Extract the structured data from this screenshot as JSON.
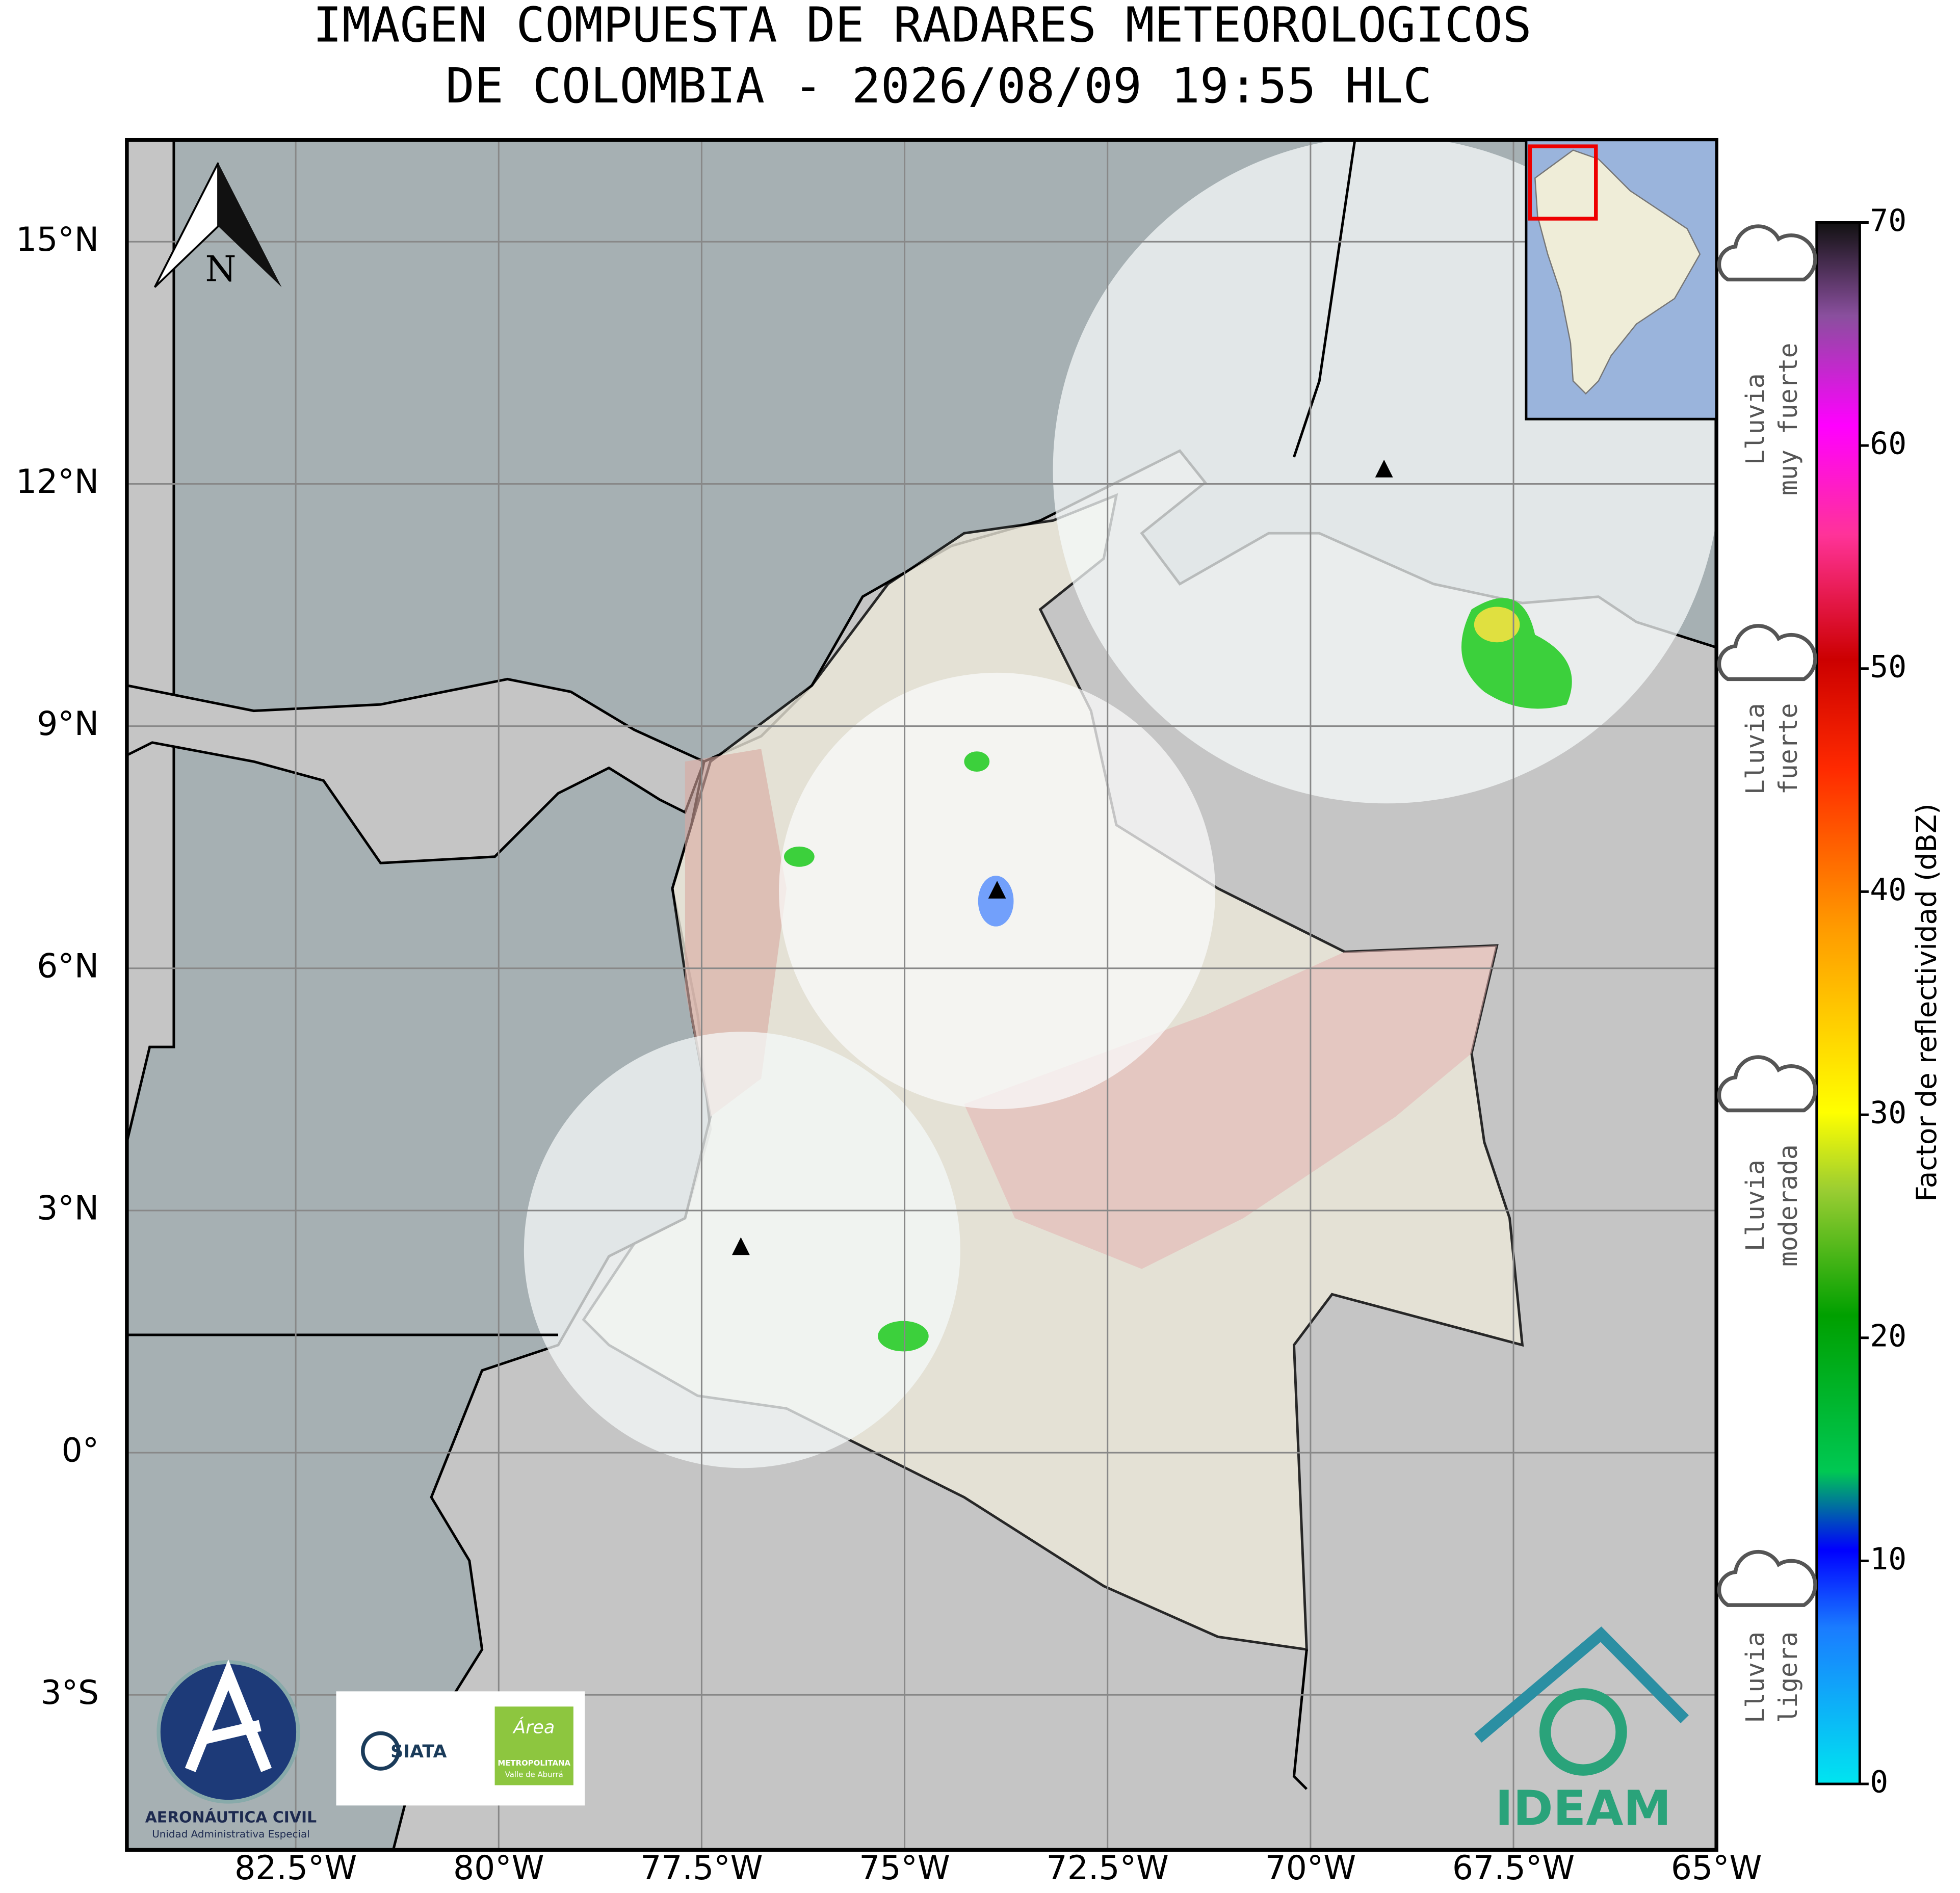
{
  "title": [
    "IMAGEN COMPUESTA DE RADARES METEOROLOGICOS",
    "DE COLOMBIA - 2026/08/09 19:55 HLC"
  ],
  "map": {
    "lonlim": [
      -84.58,
      -65
    ],
    "latlim": [
      -4.92,
      16.26
    ],
    "xticks": [
      {
        "value": -82.5,
        "label": "82.5°W"
      },
      {
        "value": -80,
        "label": "80°W"
      },
      {
        "value": -77.5,
        "label": "77.5°W"
      },
      {
        "value": -75,
        "label": "75°W"
      },
      {
        "value": -72.5,
        "label": "72.5°W"
      },
      {
        "value": -70,
        "label": "70°W"
      },
      {
        "value": -67.5,
        "label": "67.5°W"
      },
      {
        "value": -65,
        "label": "65°W"
      }
    ],
    "yticks": [
      {
        "value": 15,
        "label": "15°N"
      },
      {
        "value": 12,
        "label": "12°N"
      },
      {
        "value": 9,
        "label": "9°N"
      },
      {
        "value": 6,
        "label": "6°N"
      },
      {
        "value": 3,
        "label": "3°N"
      },
      {
        "value": 0,
        "label": "0°"
      },
      {
        "value": -3,
        "label": "3°S"
      }
    ],
    "grid": true,
    "north_label": "N"
  },
  "colorbar": {
    "label": "Factor de reflectividad (dBZ)",
    "lim": [
      0,
      70
    ],
    "ticks": [
      0,
      10,
      20,
      30,
      40,
      50,
      60,
      70
    ]
  },
  "rain_classes": [
    {
      "lines": [
        "Lluvia",
        "ligera"
      ]
    },
    {
      "lines": [
        "Lluvia",
        "moderada"
      ]
    },
    {
      "lines": [
        "Lluvia",
        "fuerte"
      ]
    },
    {
      "lines": [
        "Lluvia",
        "muy fuerte"
      ]
    }
  ],
  "logos": {
    "aerocivil": [
      "AERONÁUTICA CIVIL",
      "Unidad Administrativa Especial"
    ],
    "siata": "SIATA",
    "area": [
      "Área",
      "METROPOLITANA",
      "Valle de Aburrá"
    ],
    "ideam": "IDEAM"
  }
}
